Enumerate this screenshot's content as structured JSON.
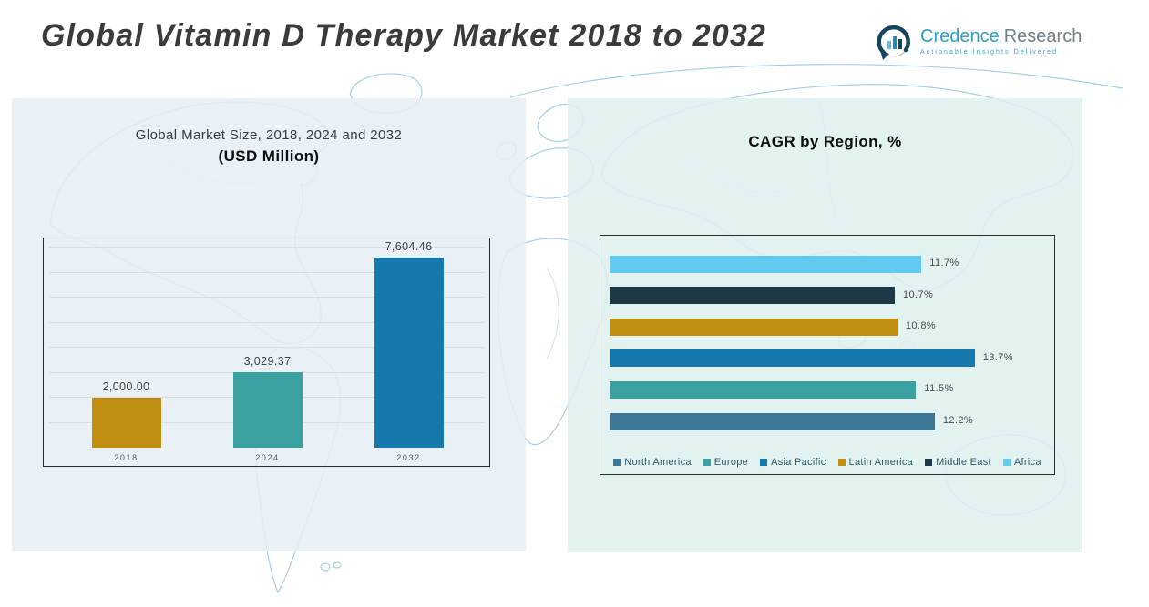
{
  "header": {
    "title": "Global Vitamin D Therapy Market 2018 to 2032",
    "logo": {
      "primary": "Credence",
      "secondary": "Research",
      "tagline": "Actionable Insights Delivered",
      "icon": "bar-chart-circle-icon",
      "primary_color": "#2D9DC3",
      "secondary_color": "#6F7E88",
      "tagline_color": "#2FA8B5"
    }
  },
  "chart_data": [
    {
      "type": "bar",
      "title": "Global Market Size, 2018, 2024 and 2032",
      "subtitle": "(USD Million)",
      "categories": [
        "2018",
        "2024",
        "2032"
      ],
      "values": [
        2000.0,
        3029.37,
        7604.46
      ],
      "value_labels": [
        "2,000.00",
        "3,029.37",
        "7,604.46"
      ],
      "bar_colors": [
        "#C18F10",
        "#3AA0A0",
        "#1579AC"
      ],
      "xlabel": "",
      "ylabel": "",
      "ylim": [
        0,
        8000
      ],
      "gridline_step": 1000,
      "grid": "on",
      "legend_position": "none"
    },
    {
      "type": "bar-horizontal",
      "title": "CAGR by Region, %",
      "categories_top_to_bottom": [
        "Africa",
        "Middle East",
        "Latin America",
        "Asia Pacific",
        "Europe",
        "North America"
      ],
      "values_top_to_bottom": [
        11.7,
        10.7,
        10.8,
        13.7,
        11.5,
        12.2
      ],
      "value_labels_top_to_bottom": [
        "11.7%",
        "10.7%",
        "10.8%",
        "13.7%",
        "11.5%",
        "12.2%"
      ],
      "bar_colors_top_to_bottom": [
        "#63CBF1",
        "#1F3845",
        "#C18F10",
        "#1579AC",
        "#3AA0A0",
        "#3D7795"
      ],
      "xlabel": "",
      "ylabel": "",
      "xlim": [
        0,
        16
      ],
      "grid": "off",
      "legend_position": "bottom",
      "legend": [
        {
          "label": "North America",
          "color": "#3D7795"
        },
        {
          "label": "Europe",
          "color": "#3AA0A0"
        },
        {
          "label": "Asia Pacific",
          "color": "#1579AC"
        },
        {
          "label": "Latin America",
          "color": "#C18F10"
        },
        {
          "label": "Middle East",
          "color": "#1F3845"
        },
        {
          "label": "Africa",
          "color": "#63CBF1"
        }
      ]
    }
  ]
}
